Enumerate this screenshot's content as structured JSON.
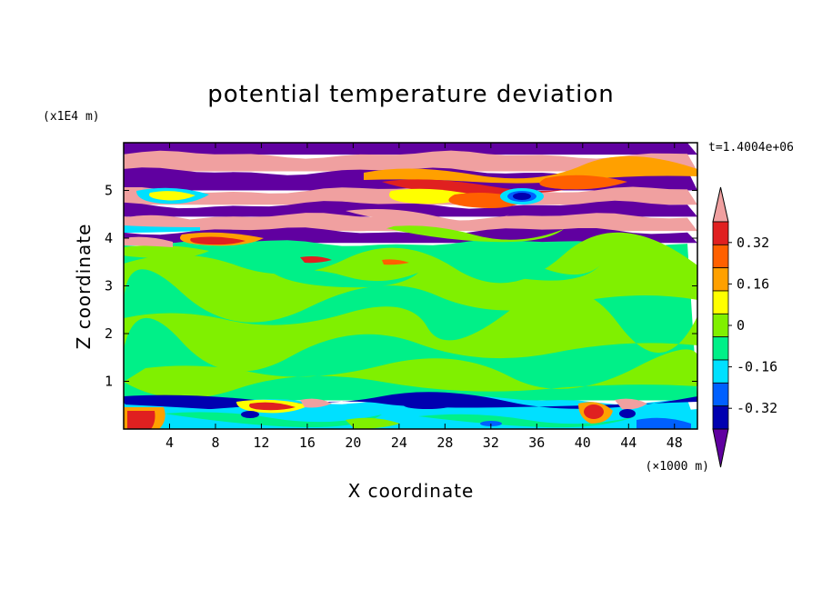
{
  "chart_data": {
    "type": "heatmap",
    "title": "potential temperature deviation",
    "xlabel": "X coordinate",
    "ylabel": "Z coordinate",
    "x_unit": "(×1000 m)",
    "y_unit": "(x1E4 m)",
    "time_label": "t=1.4004e+06",
    "xlim": [
      0,
      50
    ],
    "ylim": [
      0,
      6
    ],
    "x_ticks": [
      "4",
      "8",
      "12",
      "16",
      "20",
      "24",
      "28",
      "32",
      "36",
      "40",
      "44",
      "48"
    ],
    "y_ticks": [
      "1",
      "2",
      "3",
      "4",
      "5"
    ],
    "colorbar": {
      "levels": [
        "-0.40",
        "-0.32",
        "-0.24",
        "-0.16",
        "-0.08",
        "0",
        "0.08",
        "0.16",
        "0.24",
        "0.32",
        "0.40"
      ],
      "tick_labels": [
        "0.32",
        "0.16",
        "0",
        "-0.16",
        "-0.32"
      ],
      "tick_values": [
        0.32,
        0.16,
        0,
        -0.16,
        -0.32
      ],
      "colors": [
        "#f0a0a0",
        "#e02020",
        "#ff6000",
        "#ffa000",
        "#ffff00",
        "#80f000",
        "#00f088",
        "#00e0ff",
        "#0060ff",
        "#0000b0",
        "#6000a0"
      ],
      "extend": "both"
    },
    "bands": [
      {
        "z": [
          5.75,
          6.0
        ],
        "fill": "#6000a0"
      },
      {
        "z": [
          5.4,
          5.75
        ],
        "fill": "#f0a0a0"
      },
      {
        "z": [
          5.0,
          5.4
        ],
        "fill": "#6000a0"
      },
      {
        "z": [
          4.7,
          5.0
        ],
        "fill": "#f0a0a0"
      },
      {
        "z": [
          4.45,
          4.7
        ],
        "fill": "#6000a0"
      },
      {
        "z": [
          4.15,
          4.45
        ],
        "fill": "#f0a0a0"
      },
      {
        "z": [
          3.9,
          4.15
        ],
        "fill": "#6000a0"
      },
      {
        "z": [
          0.6,
          3.9
        ],
        "fill": "#00f088"
      },
      {
        "z": [
          0.0,
          0.6
        ],
        "fill": "#00e0ff"
      }
    ]
  }
}
